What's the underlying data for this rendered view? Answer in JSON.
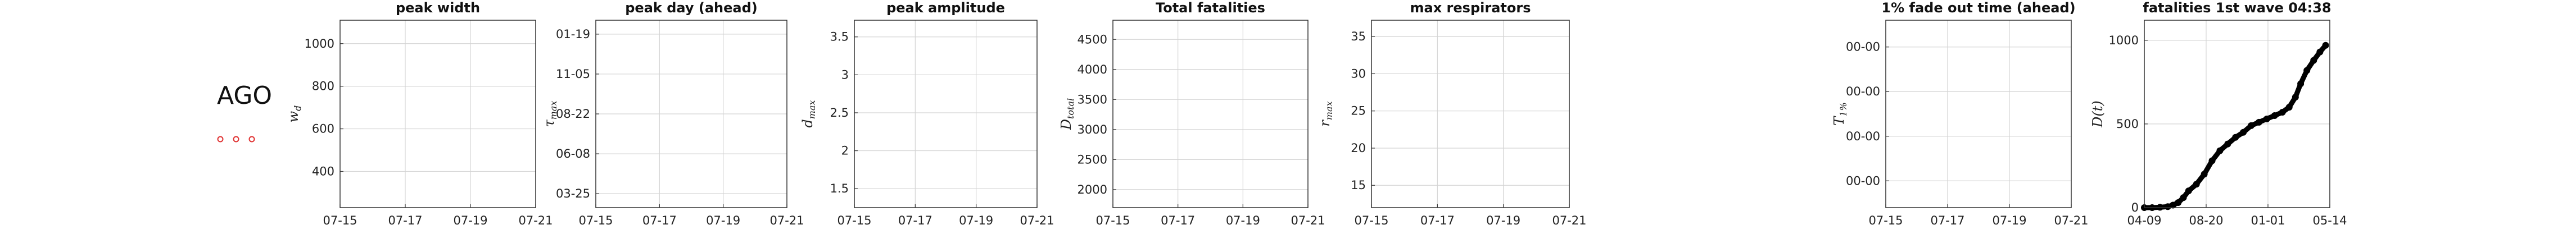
{
  "country": {
    "code": "AGO"
  },
  "markers": {
    "color": "#e03030",
    "count": 3
  },
  "chart_data": [
    {
      "type": "scatter",
      "title": "peak width",
      "ylabel": "w_d",
      "xticks": [
        "07-15",
        "07-17",
        "07-19",
        "07-21"
      ],
      "yticks": [
        "400",
        "600",
        "800",
        "1000"
      ],
      "ylim": [
        230,
        1110
      ],
      "series": []
    },
    {
      "type": "scatter",
      "title": "peak day (ahead)",
      "ylabel": "τ_max",
      "xticks": [
        "07-15",
        "07-17",
        "07-19",
        "07-21"
      ],
      "yticks": [
        "03-25",
        "06-08",
        "08-22",
        "11-05",
        "01-19"
      ],
      "ylim": [
        -0.35,
        4.35
      ],
      "series": []
    },
    {
      "type": "scatter",
      "title": "peak amplitude",
      "ylabel": "d_max",
      "xticks": [
        "07-15",
        "07-17",
        "07-19",
        "07-21"
      ],
      "yticks": [
        "1.5",
        "2",
        "2.5",
        "3",
        "3.5"
      ],
      "ylim": [
        1.25,
        3.72
      ],
      "series": []
    },
    {
      "type": "scatter",
      "title": "Total fatalities",
      "ylabel": "D_total",
      "xticks": [
        "07-15",
        "07-17",
        "07-19",
        "07-21"
      ],
      "yticks": [
        "2000",
        "2500",
        "3000",
        "3500",
        "4000",
        "4500"
      ],
      "ylim": [
        1700,
        4820
      ],
      "series": []
    },
    {
      "type": "scatter",
      "title": "max respirators",
      "ylabel": "r_max",
      "xticks": [
        "07-15",
        "07-17",
        "07-19",
        "07-21"
      ],
      "yticks": [
        "15",
        "20",
        "25",
        "30",
        "35"
      ],
      "ylim": [
        12,
        37.2
      ],
      "series": []
    },
    {
      "type": "scatter",
      "title": "1% fade out time (ahead)",
      "ylabel": "T_1%",
      "xticks": [
        "07-15",
        "07-17",
        "07-19",
        "07-21"
      ],
      "yticks": [
        "00-00",
        "00-00",
        "00-00",
        "00-00"
      ],
      "ylim": [
        -0.6,
        3.6
      ],
      "series": []
    },
    {
      "type": "line",
      "title": "fatalities 1st wave 04:38",
      "ylabel": "D(t)",
      "xticks": [
        "04-09",
        "08-20",
        "01-01",
        "05-14"
      ],
      "yticks": [
        "0",
        "500",
        "1000"
      ],
      "ylim": [
        0,
        1120
      ],
      "series": [
        {
          "color": "#000000",
          "points": [
            [
              0,
              0
            ],
            [
              15,
              0
            ],
            [
              30,
              2
            ],
            [
              45,
              6
            ],
            [
              55,
              15
            ],
            [
              65,
              30
            ],
            [
              75,
              60
            ],
            [
              85,
              100
            ],
            [
              100,
              140
            ],
            [
              115,
              200
            ],
            [
              130,
              280
            ],
            [
              145,
              340
            ],
            [
              160,
              380
            ],
            [
              175,
              420
            ],
            [
              190,
              450
            ],
            [
              205,
              490
            ],
            [
              220,
              510
            ],
            [
              235,
              530
            ],
            [
              250,
              550
            ],
            [
              265,
              570
            ],
            [
              278,
              600
            ],
            [
              290,
              660
            ],
            [
              300,
              740
            ],
            [
              312,
              820
            ],
            [
              325,
              880
            ],
            [
              337,
              930
            ],
            [
              348,
              970
            ]
          ]
        }
      ]
    }
  ]
}
